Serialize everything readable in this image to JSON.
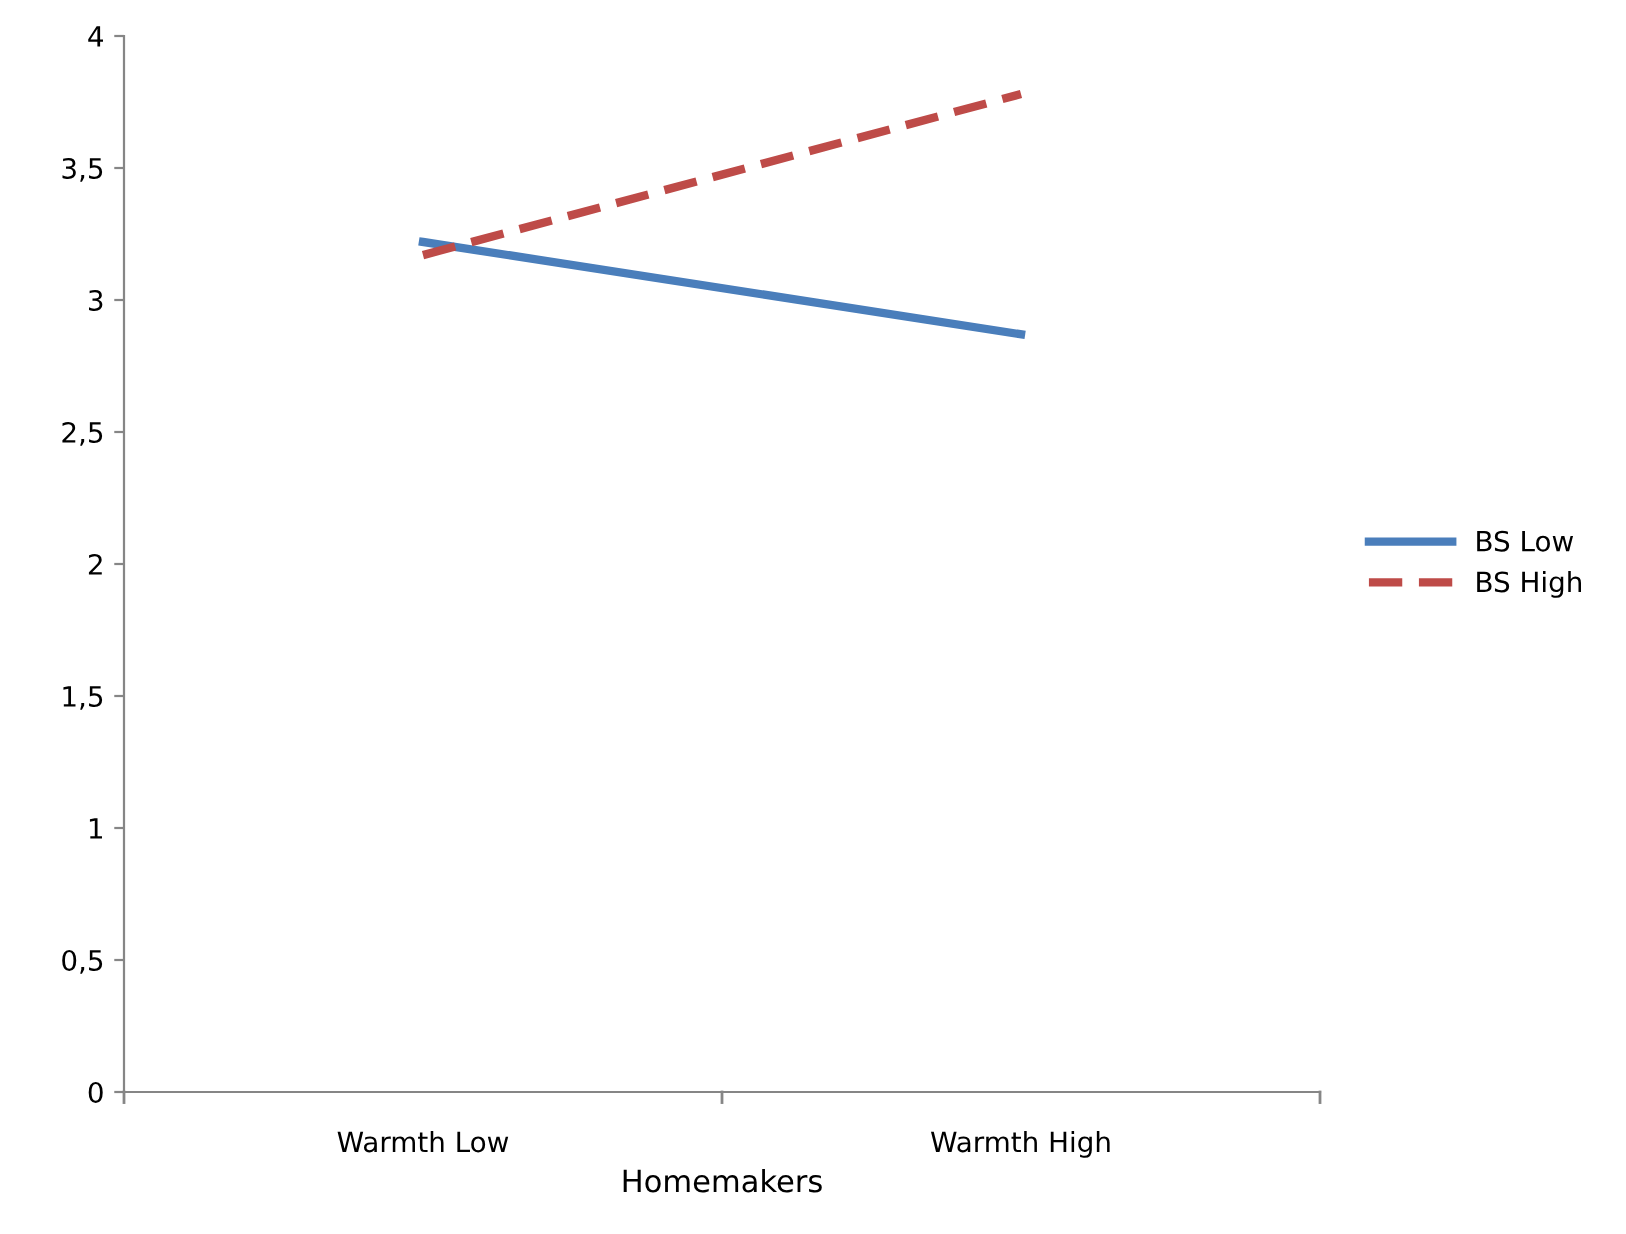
{
  "chart_data": {
    "type": "line",
    "xlabel": "Homemakers",
    "categories": [
      "Warmth Low",
      "Warmth High"
    ],
    "series": [
      {
        "name": "BS Low",
        "color": "#4a7ebb",
        "values": [
          3.22,
          2.87
        ],
        "line_style": "solid"
      },
      {
        "name": "BS High",
        "color": "#be4b48",
        "values": [
          3.17,
          3.78
        ],
        "line_style": "dashed"
      }
    ],
    "ylim": [
      0,
      4
    ],
    "yticks": [
      0,
      {
        "value": 0.5,
        "label": "0,5"
      },
      1,
      {
        "value": 1.5,
        "label": "1,5"
      },
      2,
      {
        "value": 2.5,
        "label": "2,5"
      },
      3,
      {
        "value": 3.5,
        "label": "3,5"
      },
      4
    ],
    "grid": false,
    "legend": "right",
    "marker": "none"
  }
}
